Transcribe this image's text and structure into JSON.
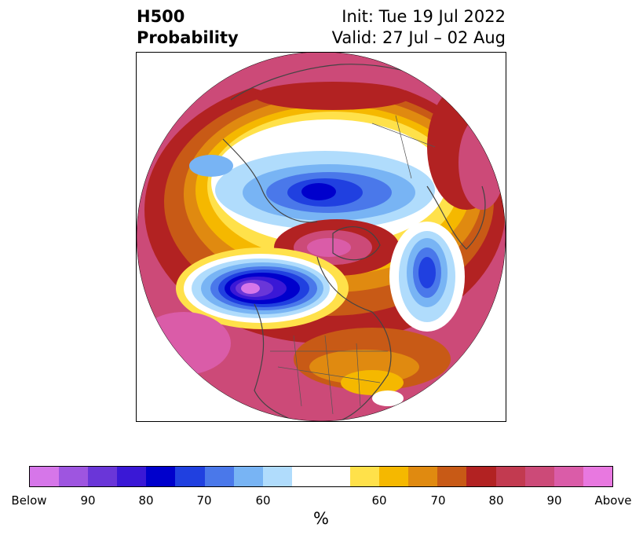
{
  "title": {
    "left_line1": "H500",
    "left_line2": "Probability",
    "right_line1": "Init: Tue 19 Jul 2022",
    "right_line2": "Valid: 27 Jul – 02 Aug"
  },
  "map": {
    "projection": "north-polar-stereographic",
    "features": [
      "coastlines",
      "country-borders",
      "state-borders"
    ],
    "anomalies": [
      {
        "region": "Alaska / Bering Sea",
        "side": "below",
        "level": "Below"
      },
      {
        "region": "Arctic Ocean / Siberia",
        "side": "below",
        "level": "80"
      },
      {
        "region": "North Atlantic",
        "side": "below",
        "level": "80"
      },
      {
        "region": "Greenland",
        "side": "above",
        "level": "90"
      },
      {
        "region": "North Pacific",
        "side": "above",
        "level": "90"
      },
      {
        "region": "Central North America",
        "side": "above",
        "level": "80"
      },
      {
        "region": "Europe",
        "side": "above",
        "level": "80"
      }
    ]
  },
  "colorbar": {
    "colors": [
      "#d676e9",
      "#9e55e0",
      "#6a36d8",
      "#3a18d6",
      "#0000cc",
      "#2040e0",
      "#4a78ea",
      "#78b4f4",
      "#b0dcfc",
      "#ffffff",
      "#ffe14a",
      "#f5b800",
      "#e08a10",
      "#c85a16",
      "#b22222",
      "#c23a50",
      "#cc4a78",
      "#da5ca8",
      "#e878e0"
    ],
    "ticks": [
      "Below",
      "90",
      "80",
      "70",
      "60",
      "60",
      "70",
      "80",
      "90",
      "Above"
    ],
    "unit": "%"
  }
}
